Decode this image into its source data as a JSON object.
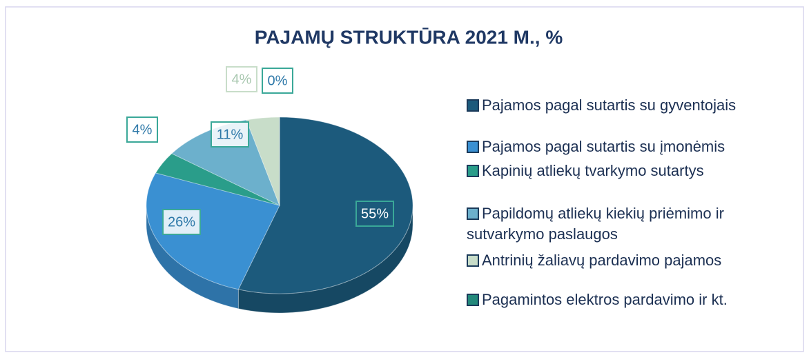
{
  "chart_data": {
    "type": "pie",
    "title": "PAJAMŲ STRUKTŪRA 2021 M., %",
    "categories": [
      "Pajamos pagal sutartis su gyventojais",
      "Pajamos pagal sutartis su įmonėmis",
      "Kapinių atliekų tvarkymo sutartys",
      "Papildomų atliekų kiekių priėmimo ir sutvarkymo paslaugos",
      "Antrinių žaliavų pardavimo pajamos",
      "Pagamintos elektros pardavimo ir kt."
    ],
    "values": [
      55,
      26,
      4,
      11,
      4,
      0
    ],
    "value_labels": [
      "55%",
      "26%",
      "4%",
      "11%",
      "4%",
      "0%"
    ],
    "colors": [
      "#1c5a7c",
      "#3a90d2",
      "#2a9d8a",
      "#6cb0cc",
      "#c8ddc9",
      "#23897b"
    ],
    "legend": "right"
  }
}
